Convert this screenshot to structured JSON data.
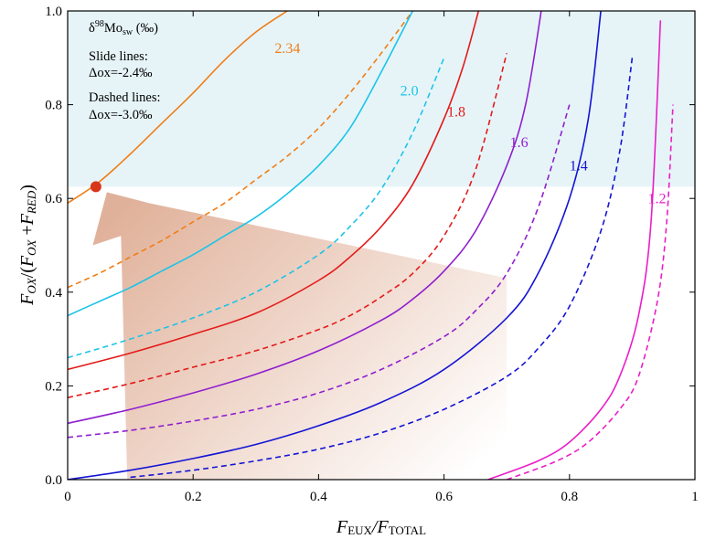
{
  "chart_data": {
    "type": "line",
    "title": "",
    "xlim": [
      0,
      1
    ],
    "ylim": [
      0,
      1
    ],
    "x_ticks": [
      "0",
      "0.2",
      "0.4",
      "0.6",
      "0.8",
      "1"
    ],
    "y_ticks": [
      "0.0",
      "0.2",
      "0.4",
      "0.6",
      "0.8",
      "1.0"
    ],
    "xlabel": {
      "main1": "F",
      "sub1": "EUX",
      "slash": "/",
      "main2": "F",
      "sub2": "TOTAL"
    },
    "ylabel": {
      "a": "F",
      "a_sub": "OX",
      "b": "/(",
      "c": "F",
      "c_sub": "OX",
      "d": " +",
      "e": "F",
      "e_sub": "RED",
      "f": ")"
    },
    "legend": {
      "title_prefix": "δ",
      "title_sup": "98",
      "title_main": "Mo",
      "title_sub": "sw",
      "title_unit": " (‰)",
      "solid_heading": "Slide lines:",
      "solid_value": "Δox=-2.4‰",
      "dashed_heading": "Dashed lines:",
      "dashed_value": "Δox=-3.0‰"
    },
    "shaded_region": {
      "y_from": 0.625,
      "y_to": 1.0,
      "color": "#e6f4f8"
    },
    "marker": {
      "x": 0.045,
      "y": 0.625,
      "color": "#d8361a"
    },
    "arrow_color": "#d69778",
    "series": [
      {
        "name": "2.34",
        "color": "#f07e16",
        "style": "solid",
        "label_pos": [
          0.33,
          0.91
        ],
        "x": [
          0,
          0.05,
          0.1,
          0.15,
          0.2,
          0.25,
          0.3,
          0.35
        ],
        "y": [
          0.59,
          0.635,
          0.695,
          0.76,
          0.825,
          0.895,
          0.955,
          1.0
        ]
      },
      {
        "name": "",
        "color": "#f07e16",
        "style": "dashed",
        "x": [
          0,
          0.05,
          0.1,
          0.15,
          0.2,
          0.25,
          0.3,
          0.35,
          0.4,
          0.45,
          0.5,
          0.55
        ],
        "y": [
          0.41,
          0.44,
          0.475,
          0.51,
          0.55,
          0.59,
          0.64,
          0.69,
          0.75,
          0.825,
          0.91,
          1.0
        ]
      },
      {
        "name": "2.0",
        "color": "#1cc4e8",
        "style": "solid",
        "label_pos": [
          0.53,
          0.82
        ],
        "x": [
          0,
          0.05,
          0.1,
          0.15,
          0.2,
          0.25,
          0.3,
          0.35,
          0.4,
          0.45,
          0.5,
          0.55
        ],
        "y": [
          0.35,
          0.38,
          0.41,
          0.445,
          0.48,
          0.52,
          0.56,
          0.61,
          0.67,
          0.75,
          0.87,
          1.0
        ]
      },
      {
        "name": "",
        "color": "#1cc4e8",
        "style": "dashed",
        "x": [
          0,
          0.1,
          0.2,
          0.3,
          0.4,
          0.45,
          0.5,
          0.55,
          0.6
        ],
        "y": [
          0.26,
          0.3,
          0.345,
          0.4,
          0.48,
          0.54,
          0.62,
          0.74,
          0.9
        ]
      },
      {
        "name": "1.8",
        "color": "#e41a1a",
        "style": "solid",
        "label_pos": [
          0.605,
          0.775
        ],
        "x": [
          0,
          0.1,
          0.2,
          0.3,
          0.4,
          0.45,
          0.5,
          0.55,
          0.6,
          0.63,
          0.655
        ],
        "y": [
          0.235,
          0.27,
          0.31,
          0.355,
          0.425,
          0.475,
          0.54,
          0.63,
          0.77,
          0.88,
          1.0
        ]
      },
      {
        "name": "",
        "color": "#e41a1a",
        "style": "dashed",
        "x": [
          0,
          0.1,
          0.2,
          0.3,
          0.4,
          0.45,
          0.5,
          0.55,
          0.6,
          0.65,
          0.7
        ],
        "y": [
          0.175,
          0.205,
          0.24,
          0.275,
          0.32,
          0.35,
          0.39,
          0.44,
          0.52,
          0.66,
          0.91
        ]
      },
      {
        "name": "1.6",
        "color": "#8f1fcf",
        "style": "solid",
        "label_pos": [
          0.705,
          0.71
        ],
        "x": [
          0,
          0.1,
          0.2,
          0.3,
          0.4,
          0.5,
          0.55,
          0.6,
          0.65,
          0.7,
          0.73,
          0.755
        ],
        "y": [
          0.12,
          0.15,
          0.185,
          0.225,
          0.275,
          0.34,
          0.385,
          0.445,
          0.53,
          0.67,
          0.8,
          1.0
        ]
      },
      {
        "name": "",
        "color": "#8f1fcf",
        "style": "dashed",
        "x": [
          0,
          0.1,
          0.2,
          0.3,
          0.4,
          0.5,
          0.6,
          0.65,
          0.7,
          0.75,
          0.8
        ],
        "y": [
          0.09,
          0.105,
          0.125,
          0.15,
          0.185,
          0.235,
          0.305,
          0.36,
          0.44,
          0.58,
          0.8
        ]
      },
      {
        "name": "1.4",
        "color": "#1414d4",
        "style": "solid",
        "label_pos": [
          0.8,
          0.66
        ],
        "x": [
          0,
          0.1,
          0.2,
          0.3,
          0.4,
          0.5,
          0.6,
          0.7,
          0.75,
          0.8,
          0.83,
          0.85
        ],
        "y": [
          0.0,
          0.02,
          0.045,
          0.075,
          0.115,
          0.165,
          0.235,
          0.345,
          0.44,
          0.6,
          0.77,
          1.0
        ]
      },
      {
        "name": "",
        "color": "#1414d4",
        "style": "dashed",
        "x": [
          0.1,
          0.2,
          0.3,
          0.4,
          0.5,
          0.6,
          0.7,
          0.75,
          0.8,
          0.85,
          0.88,
          0.9
        ],
        "y": [
          0.005,
          0.02,
          0.04,
          0.065,
          0.1,
          0.15,
          0.22,
          0.28,
          0.37,
          0.53,
          0.7,
          0.9
        ]
      },
      {
        "name": "1.2",
        "color": "#ea1ec8",
        "style": "solid",
        "label_pos": [
          0.925,
          0.59
        ],
        "x": [
          0.67,
          0.75,
          0.8,
          0.85,
          0.88,
          0.91,
          0.93,
          0.945
        ],
        "y": [
          0.0,
          0.04,
          0.08,
          0.15,
          0.22,
          0.35,
          0.55,
          0.98
        ]
      },
      {
        "name": "",
        "color": "#ea1ec8",
        "style": "dashed",
        "x": [
          0.7,
          0.78,
          0.83,
          0.88,
          0.91,
          0.94,
          0.955,
          0.965
        ],
        "y": [
          0.0,
          0.04,
          0.08,
          0.15,
          0.22,
          0.38,
          0.55,
          0.8
        ]
      }
    ]
  }
}
